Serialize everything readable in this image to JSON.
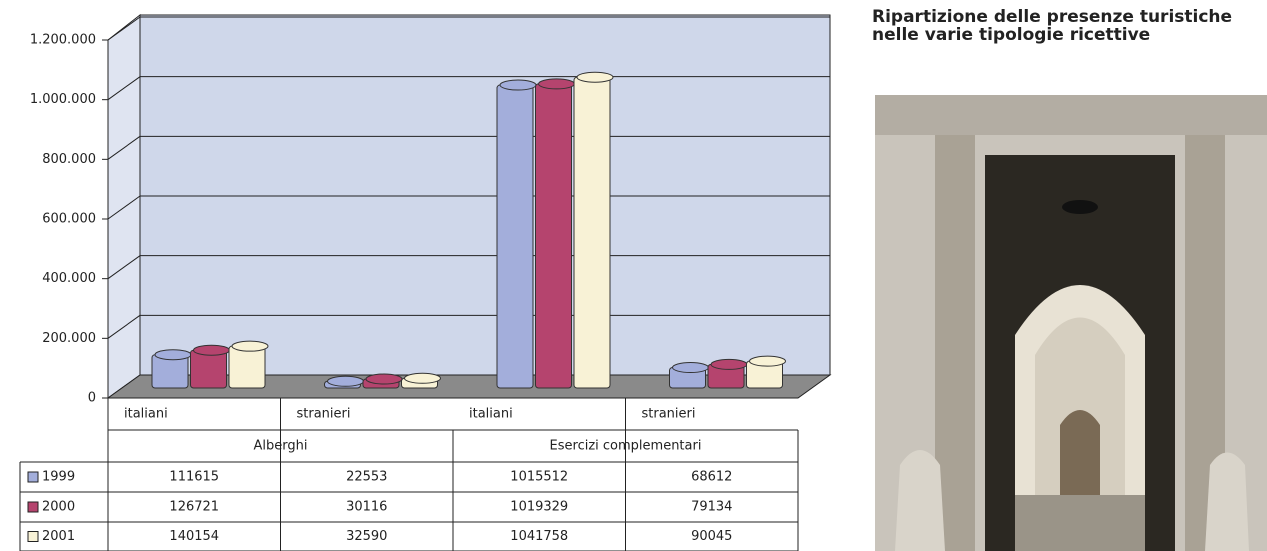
{
  "chart_data": {
    "type": "bar",
    "title": "Ripartizione delle presenze turistiche nelle varie tipologie ricettive",
    "categories": [
      "italiani",
      "stranieri",
      "italiani",
      "stranieri"
    ],
    "groups": [
      "Alberghi",
      "Esercizi complementari"
    ],
    "series": [
      {
        "name": "1999",
        "color": "#a3aedb",
        "values": [
          111615,
          22553,
          1015512,
          68612
        ]
      },
      {
        "name": "2000",
        "color": "#b5446e",
        "values": [
          126721,
          30116,
          1019329,
          79134
        ]
      },
      {
        "name": "2001",
        "color": "#f8f2d6",
        "values": [
          140154,
          32590,
          1041758,
          90045
        ]
      }
    ],
    "ylim": [
      0,
      1200000
    ],
    "yticks": [
      0,
      {
        "value": 200000,
        "label": "200.000"
      },
      {
        "value": 400000,
        "label": "400.000"
      },
      {
        "value": 600000,
        "label": "600.000"
      },
      {
        "value": 800000,
        "label": "800.000"
      },
      {
        "value": 1000000,
        "label": "1.000.000"
      },
      {
        "value": 1200000,
        "label": "1.200.000"
      }
    ],
    "grid": true
  }
}
